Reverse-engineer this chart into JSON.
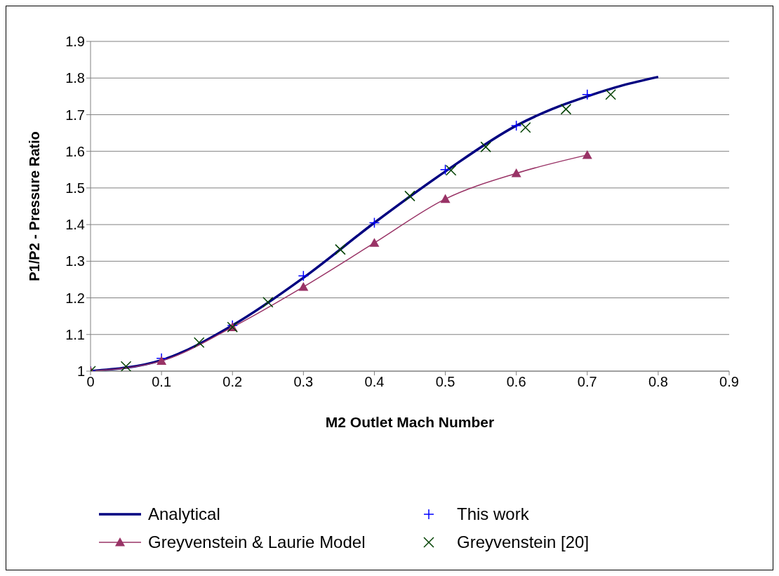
{
  "chart_data": {
    "type": "line",
    "xlabel": "M2 Outlet Mach Number",
    "ylabel": "P1/P2 - Pressure Ratio",
    "xlim": [
      0,
      0.9
    ],
    "xticks": [
      0,
      0.1,
      0.2,
      0.3,
      0.4,
      0.5,
      0.6,
      0.7,
      0.8,
      0.9
    ],
    "ylim": [
      1,
      1.9
    ],
    "yticks": [
      1,
      1.1,
      1.2,
      1.3,
      1.4,
      1.5,
      1.6,
      1.7,
      1.8,
      1.9
    ],
    "grid": "y",
    "legend": "bottom",
    "series": [
      {
        "name": "Analytical",
        "color": "#000080",
        "marker": "none",
        "x": [
          0,
          0.1,
          0.2,
          0.3,
          0.4,
          0.5,
          0.6,
          0.65,
          0.7,
          0.75,
          0.8
        ],
        "values": [
          1.0,
          1.03,
          1.125,
          1.255,
          1.405,
          1.545,
          1.67,
          1.715,
          1.75,
          1.78,
          1.803
        ]
      },
      {
        "name": "This work",
        "type": "scatter",
        "color": "#0000ff",
        "marker": "plus",
        "x": [
          0,
          0.1,
          0.2,
          0.3,
          0.4,
          0.5,
          0.6,
          0.7
        ],
        "values": [
          1.0,
          1.035,
          1.125,
          1.26,
          1.405,
          1.55,
          1.67,
          1.755
        ]
      },
      {
        "name": "Greyvenstein & Laurie Model",
        "color": "#993366",
        "marker": "triangle",
        "x": [
          0,
          0.1,
          0.2,
          0.3,
          0.4,
          0.5,
          0.6,
          0.7
        ],
        "values": [
          1.0,
          1.028,
          1.12,
          1.23,
          1.35,
          1.47,
          1.54,
          1.59
        ]
      },
      {
        "name": "Greyvenstein [20]",
        "type": "scatter",
        "color": "#004000",
        "marker": "cross",
        "x": [
          0,
          0.05,
          0.153,
          0.2,
          0.25,
          0.352,
          0.45,
          0.508,
          0.557,
          0.613,
          0.67,
          0.733
        ],
        "values": [
          1.0,
          1.013,
          1.078,
          1.12,
          1.188,
          1.332,
          1.478,
          1.548,
          1.612,
          1.665,
          1.715,
          1.755
        ]
      }
    ]
  }
}
